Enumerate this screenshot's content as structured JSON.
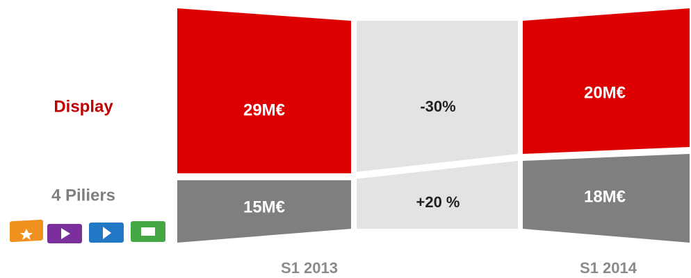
{
  "chart_data": {
    "type": "panels",
    "categories": [
      "S1 2013",
      "S1 2014"
    ],
    "series": [
      {
        "name": "Display",
        "color": "#dd0000",
        "values": [
          29,
          20
        ],
        "value_labels": [
          "29M€",
          "20M€"
        ]
      },
      {
        "name": "4 Piliers",
        "color": "#7f7f7f",
        "values": [
          15,
          18
        ],
        "value_labels": [
          "15M€",
          "18M€"
        ]
      }
    ],
    "changes": [
      "-30%",
      "+20 %"
    ]
  }
}
